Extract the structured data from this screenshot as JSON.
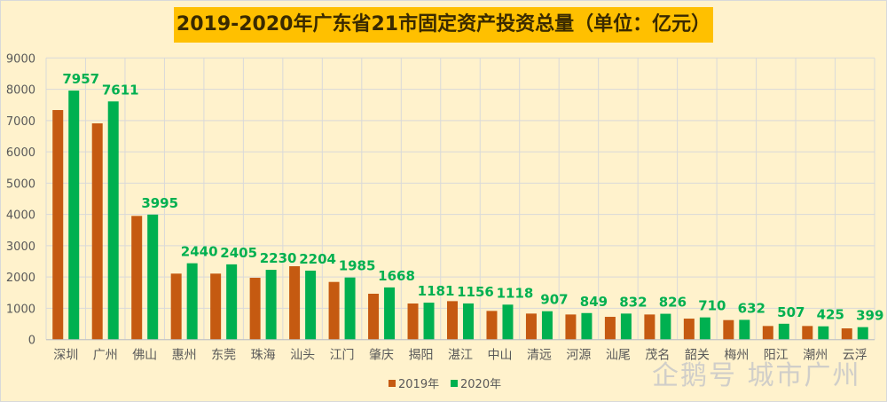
{
  "chart_data": {
    "type": "bar",
    "title": "2019-2020年广东省21市固定资产投资总量（单位：亿元）",
    "categories": [
      "深圳",
      "广州",
      "佛山",
      "惠州",
      "东莞",
      "珠海",
      "汕头",
      "江门",
      "肇庆",
      "揭阳",
      "湛江",
      "中山",
      "清远",
      "河源",
      "汕尾",
      "茂名",
      "韶关",
      "梅州",
      "阳江",
      "潮州",
      "云浮"
    ],
    "series": [
      {
        "name": "2019年",
        "color": "#C55A11",
        "values": [
          7335,
          6910,
          3952,
          2109,
          2109,
          1976,
          2345,
          1843,
          1466,
          1154,
          1229,
          917,
          832,
          803,
          728,
          803,
          671,
          624,
          435,
          435,
          359
        ]
      },
      {
        "name": "2020年",
        "color": "#00B050",
        "values": [
          7957,
          7611,
          3995,
          2440,
          2405,
          2230,
          2204,
          1985,
          1668,
          1181,
          1156,
          1118,
          907,
          849,
          832,
          826,
          710,
          632,
          507,
          425,
          399
        ],
        "data_labels": true
      }
    ],
    "ylim": [
      0,
      9000
    ],
    "yticks": [
      0,
      1000,
      2000,
      3000,
      4000,
      5000,
      6000,
      7000,
      8000,
      9000
    ],
    "grid": true,
    "legend_placement": "bottom"
  },
  "watermark": "企鹅号 城市广州"
}
